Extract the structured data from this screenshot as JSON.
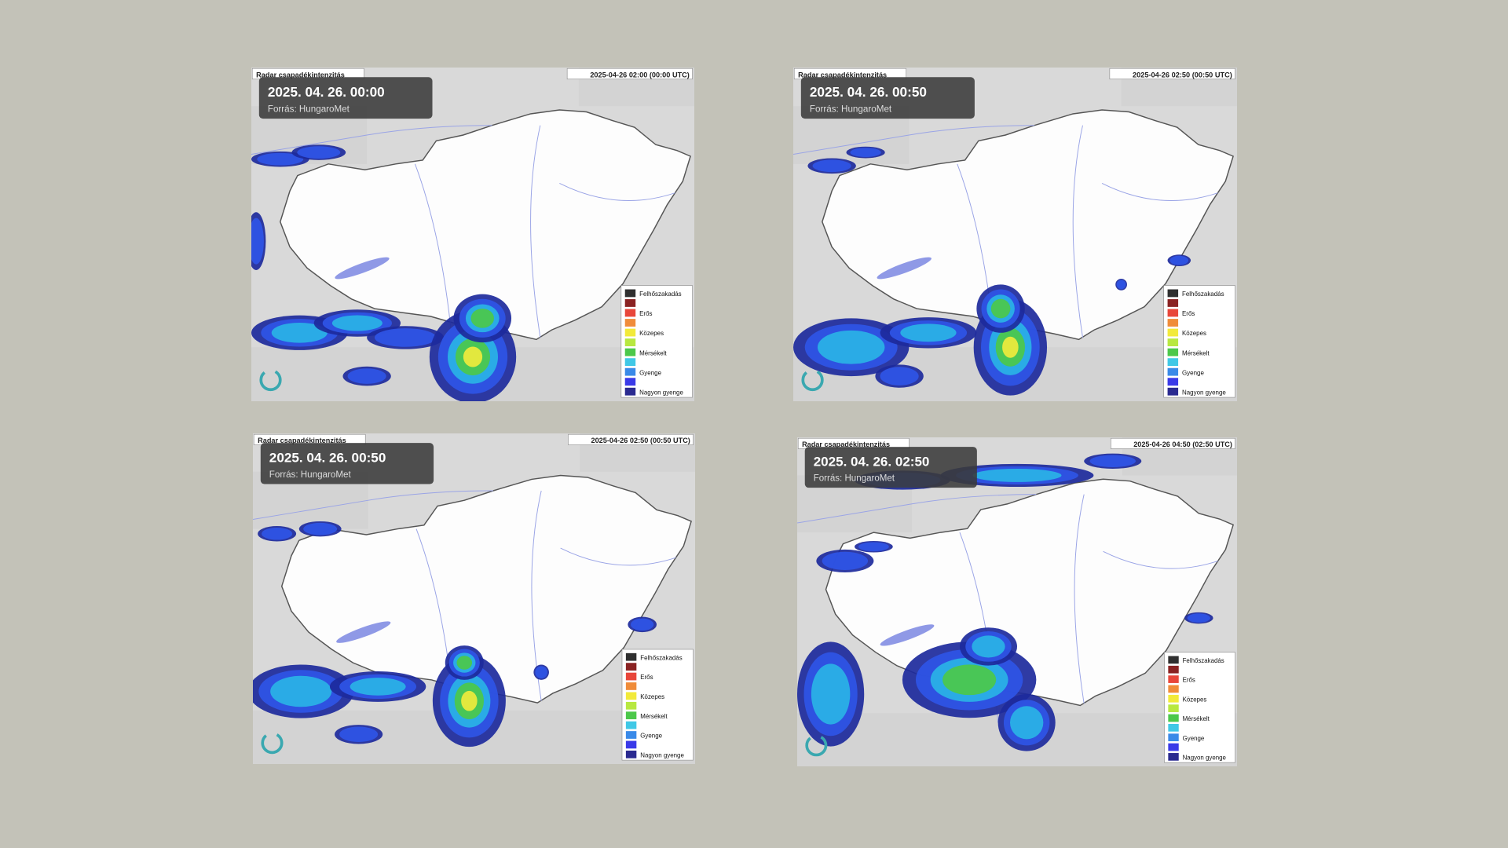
{
  "panels": [
    {
      "label": "Radar csapadékintenzitás",
      "timestamp": "2025-04-26 02:00 (00:00 UTC)",
      "title": "2025. 04. 26.  00:00",
      "source": "Forrás: HungaroMet"
    },
    {
      "label": "Radar csapadékintenzitás",
      "timestamp": "2025-04-26 02:50 (00:50 UTC)",
      "title": "2025. 04. 26.  00:50",
      "source": "Forrás: HungaroMet"
    },
    {
      "label": "Radar csapadékintenzitás",
      "timestamp": "2025-04-26 02:50 (00:50 UTC)",
      "title": "2025. 04. 26.  00:50",
      "source": "Forrás: HungaroMet"
    },
    {
      "label": "Radar csapadékintenzitás",
      "timestamp": "2025-04-26 04:50 (02:50 UTC)",
      "title": "2025. 04. 26.  02:50",
      "source": "Forrás: HungaroMet"
    }
  ],
  "legend": [
    "Felhőszakadás",
    "Erős",
    "Közepes",
    "Mérsékelt",
    "Gyenge",
    "Nagyon gyenge"
  ]
}
